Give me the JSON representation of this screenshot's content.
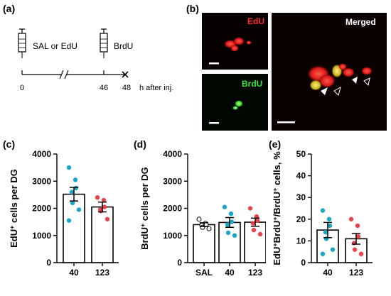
{
  "panels": {
    "a": {
      "label": "(a)",
      "injection1": "SAL or EdU",
      "injection2": "BrdU",
      "ticks": [
        "0",
        "46",
        "48"
      ],
      "unit": "h after inj."
    },
    "b": {
      "label": "(b)",
      "edu_title": "EdU",
      "brdu_title": "BrdU",
      "merged_title": "Merged",
      "colors": {
        "edu": "#ff2a2a",
        "brdu": "#39e639",
        "merged_title": "#ffffff",
        "background": "#000000"
      }
    },
    "c": {
      "label": "(c)"
    },
    "d": {
      "label": "(d)"
    },
    "e": {
      "label": "(e)"
    }
  },
  "chart_data": [
    {
      "panel": "c",
      "type": "bar",
      "ylabel": "EdU+ cells per DG",
      "categories": [
        "40",
        "123"
      ],
      "values": [
        2520,
        2050
      ],
      "sem": [
        250,
        180
      ],
      "ylim": [
        0,
        4000
      ],
      "yticks": [
        0,
        1000,
        2000,
        3000,
        4000
      ],
      "point_colors": [
        "#1aa6c8",
        "#e8434a"
      ],
      "points": [
        [
          3500,
          3050,
          2750,
          2600,
          2200,
          1950,
          1550
        ],
        [
          2400,
          2300,
          2050,
          1950,
          1900,
          1600
        ]
      ]
    },
    {
      "panel": "d",
      "type": "bar",
      "ylabel": "BrdU+ cells per DG",
      "categories": [
        "SAL",
        "40",
        "123"
      ],
      "values": [
        1400,
        1480,
        1490
      ],
      "sem": [
        70,
        180,
        150
      ],
      "ylim": [
        0,
        4000
      ],
      "yticks": [
        0,
        1000,
        2000,
        3000,
        4000
      ],
      "point_colors": [
        "#ffffff",
        "#1aa6c8",
        "#e8434a"
      ],
      "points": [
        [
          1600,
          1450,
          1400,
          1380,
          1300,
          1250
        ],
        [
          2050,
          1800,
          1500,
          1400,
          1100,
          1000
        ],
        [
          2000,
          1700,
          1550,
          1450,
          1200,
          1050
        ]
      ]
    },
    {
      "panel": "e",
      "type": "bar",
      "ylabel": "EdU+BrdU+/BrdU+ cells, %",
      "categories": [
        "40",
        "123"
      ],
      "values": [
        15,
        11
      ],
      "sem": [
        3.5,
        2.5
      ],
      "ylim": [
        0,
        50
      ],
      "yticks": [
        0,
        10,
        20,
        30,
        40,
        50
      ],
      "point_colors": [
        "#1aa6c8",
        "#e8434a"
      ],
      "points": [
        [
          24,
          20,
          17,
          14,
          11,
          6,
          4
        ],
        [
          20,
          17,
          12,
          9,
          6,
          4
        ]
      ]
    }
  ]
}
